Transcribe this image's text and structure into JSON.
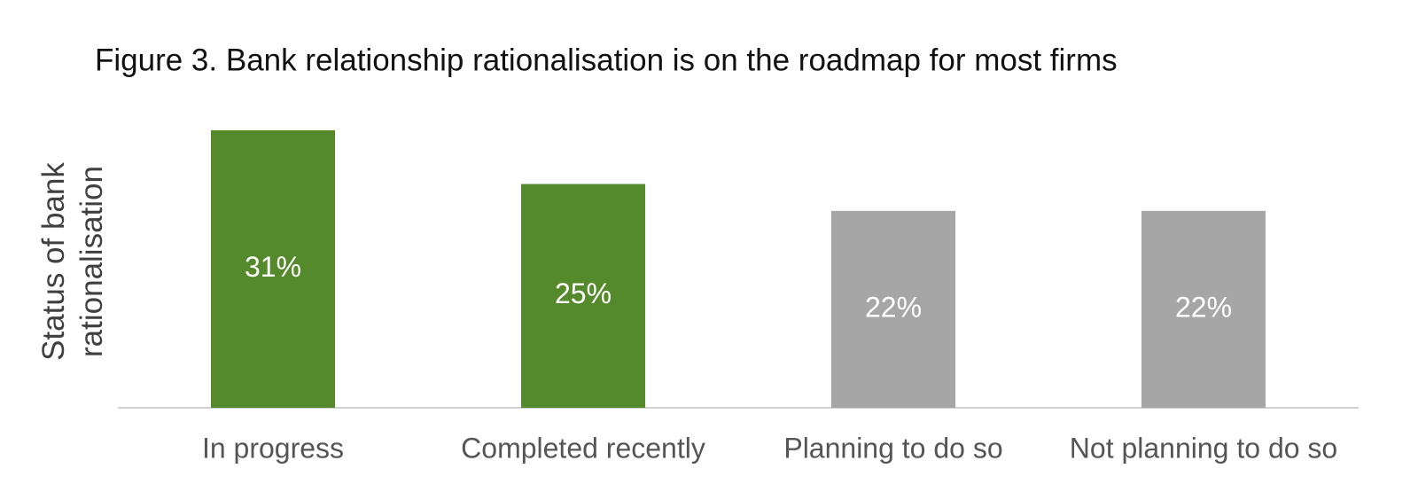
{
  "chart_data": {
    "type": "bar",
    "title": "Figure 3. Bank relationship rationalisation is on the roadmap for most firms",
    "y_label": "Status of bank rationalisation",
    "categories": [
      "In progress",
      "Completed recently",
      "Planning to do so",
      "Not planning to do so"
    ],
    "values": [
      31,
      25,
      22,
      22
    ],
    "value_labels": [
      "31%",
      "25%",
      "22%",
      "22%"
    ],
    "colors": [
      "#548a2b",
      "#548a2b",
      "#a6a6a6",
      "#a6a6a6"
    ]
  }
}
